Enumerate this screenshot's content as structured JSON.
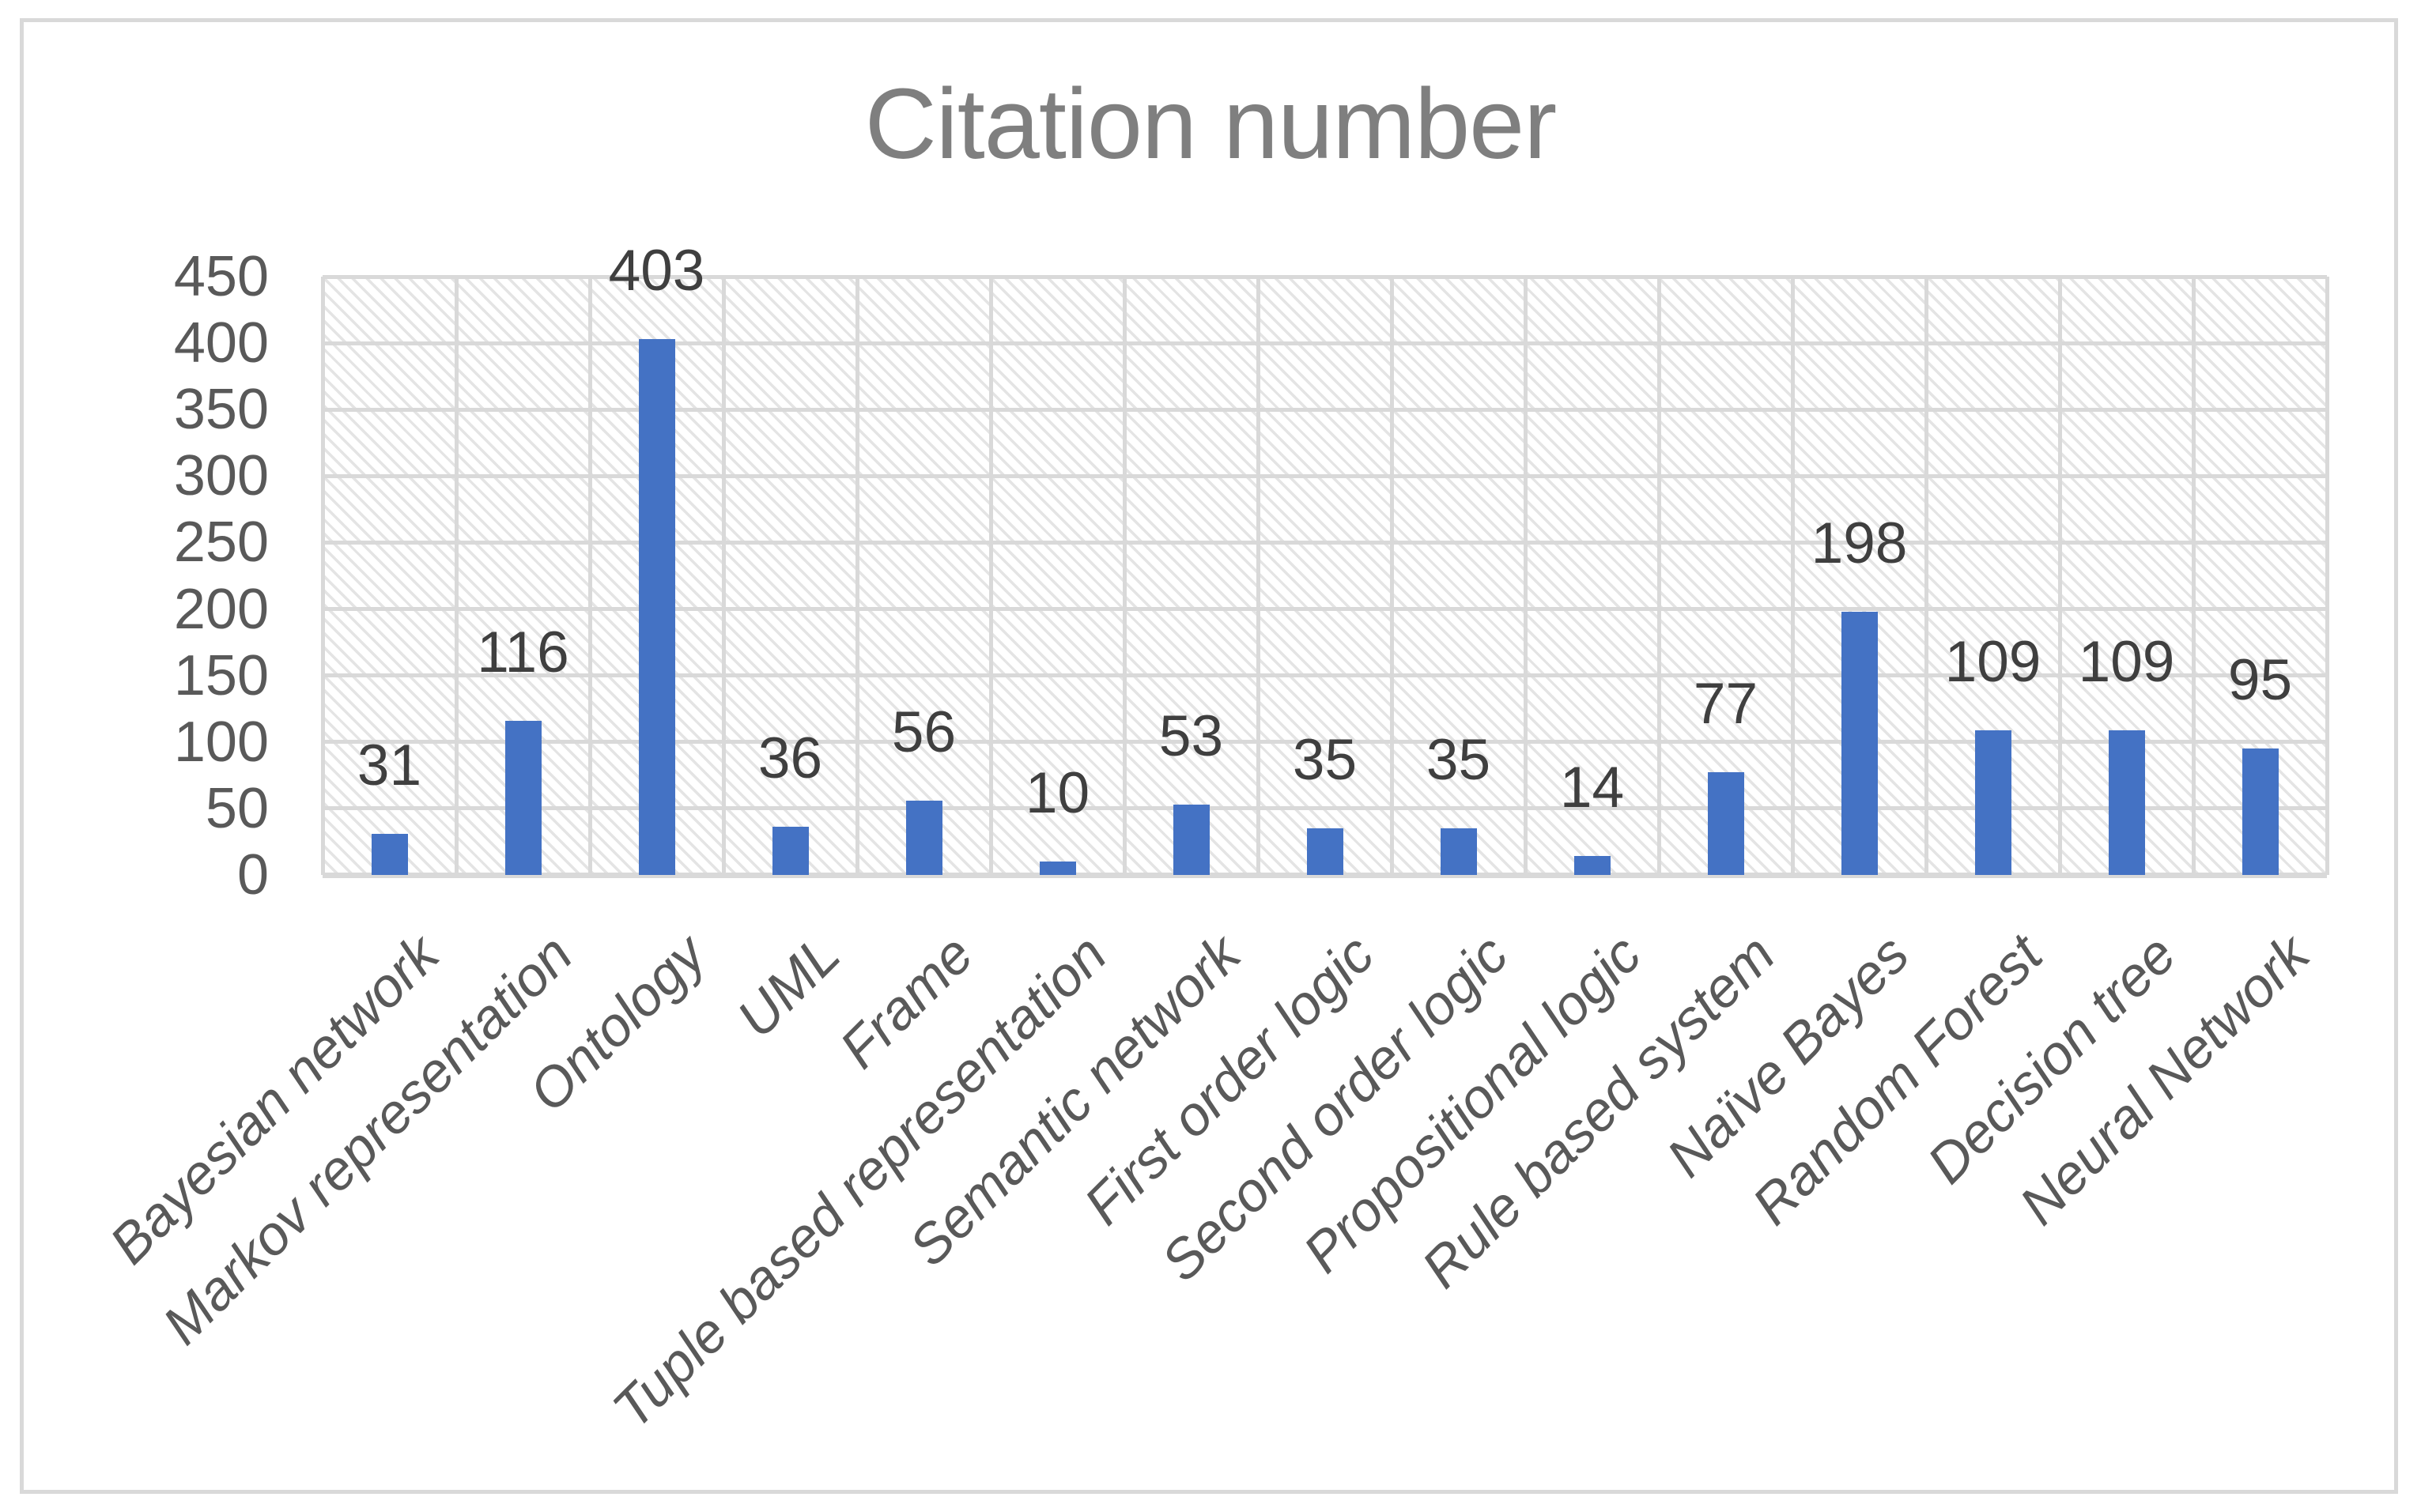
{
  "chart_data": {
    "type": "bar",
    "title": "Citation number",
    "categories": [
      "Bayesian network",
      "Markov representation",
      "Ontology",
      "UML",
      "Frame",
      "Tuple based representation",
      "Semantic network",
      "First order logic",
      "Second order logic",
      "Propositional logic",
      "Rule based system",
      "Naïve Bayes",
      "Random Forest",
      "Decision tree",
      "Neural Network"
    ],
    "values": [
      31,
      116,
      403,
      36,
      56,
      10,
      53,
      35,
      35,
      14,
      77,
      198,
      109,
      109,
      95
    ],
    "xlabel": "",
    "ylabel": "",
    "ylim": [
      0,
      450
    ],
    "yticks": [
      0,
      50,
      100,
      150,
      200,
      250,
      300,
      350,
      400,
      450
    ],
    "grid": "both",
    "legend": "none",
    "data_labels_shown": true,
    "plot_area_pattern": "light-diagonal-hatch",
    "colors": {
      "bar": "#4472C4",
      "gridline": "#D9D9D9",
      "plot_hatch": "#E4E4E4",
      "axis_label": "#595959",
      "data_label": "#3F3F3F",
      "title": "#7F7F7F",
      "figure_border": "#D9D9D9"
    }
  }
}
